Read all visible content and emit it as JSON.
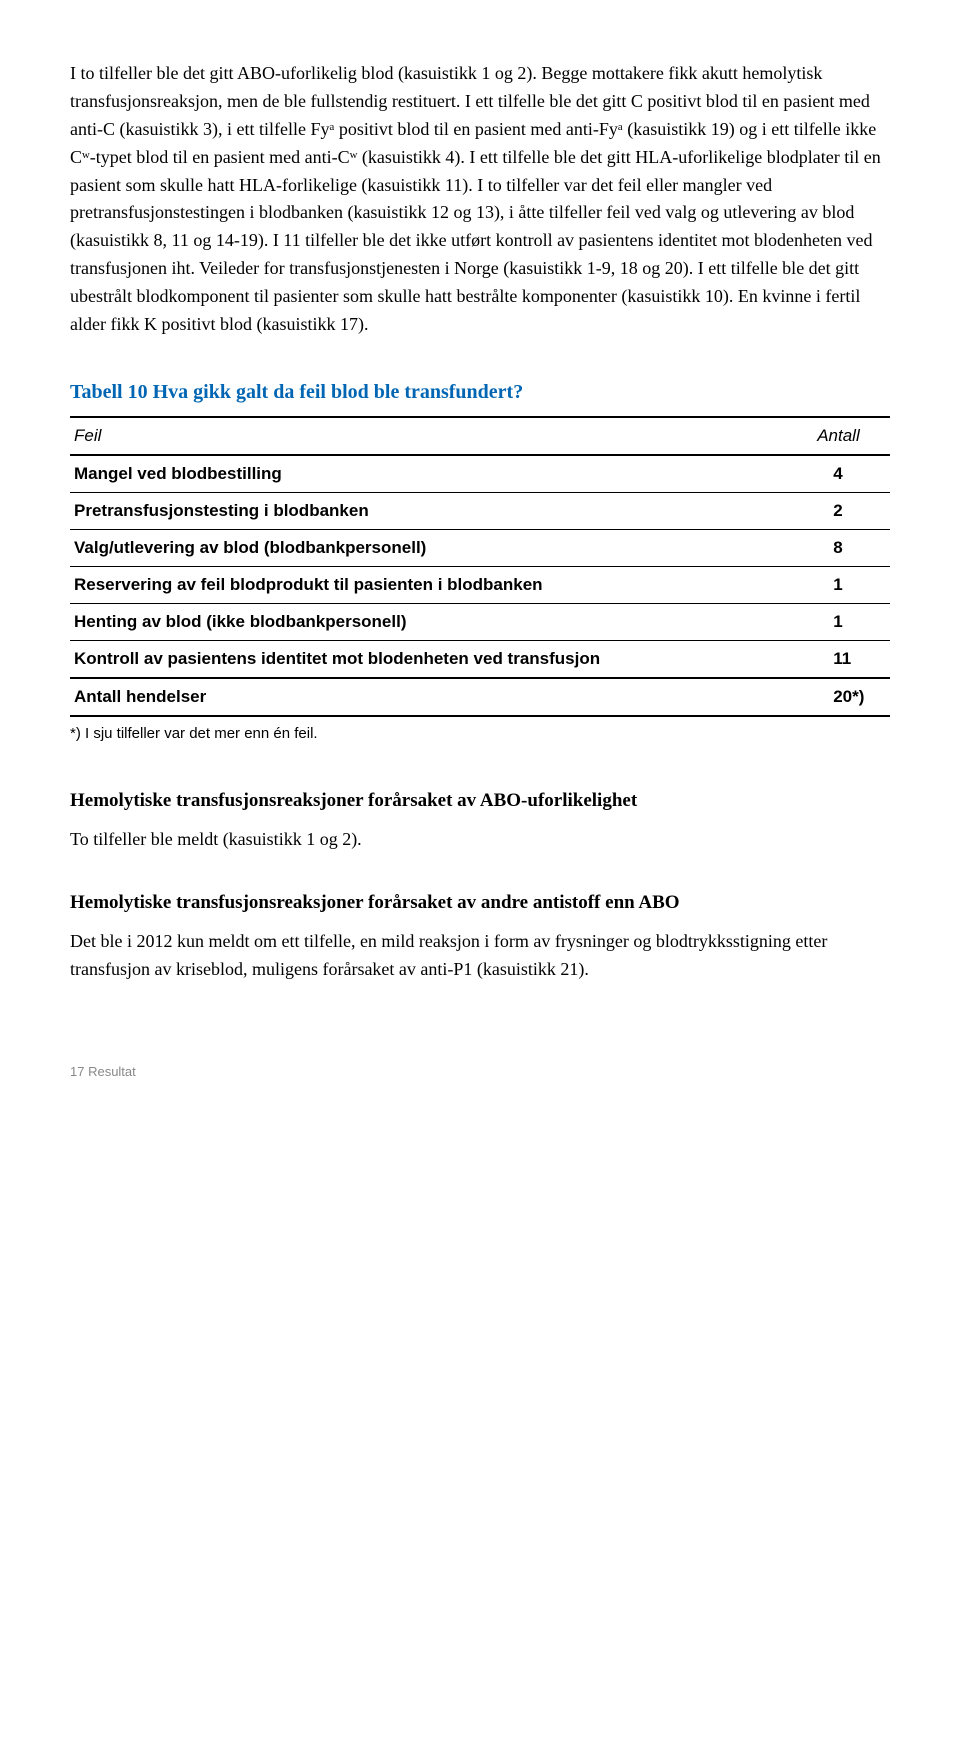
{
  "body_paragraph": "I to tilfeller ble det gitt ABO-uforlikelig blod (kasuistikk 1 og 2). Begge mottakere fikk akutt hemolytisk transfusjonsreaksjon, men de ble fullstendig restituert. I ett tilfelle ble det gitt C positivt blod til en pasient med anti-C (kasuistikk 3), i ett tilfelle Fyᵃ positivt blod til en pasient med anti-Fyᵃ (kasuistikk 19) og i ett tilfelle ikke Cʷ-typet blod til en pasient med anti-Cʷ (kasuistikk 4). I ett tilfelle ble det gitt HLA-uforlikelige blodplater til en pasient som skulle hatt HLA-forlikelige (kasuistikk 11). I to tilfeller var det feil eller mangler ved pretransfusjonstestingen i blodbanken (kasuistikk 12 og 13), i åtte tilfeller feil ved valg og utlevering av blod (kasuistikk 8, 11 og 14-19). I 11 tilfeller ble det ikke utført kontroll av pasientens identitet mot blodenheten ved transfusjonen iht. Veileder for transfusjonstjenesten i Norge (kasuistikk 1-9, 18 og 20). I ett tilfelle ble det gitt ubestrålt blodkomponent til pasienter som skulle hatt bestrålte komponenter (kasuistikk 10). En kvinne i fertil alder fikk K positivt blod (kasuistikk 17).",
  "table": {
    "title": "Tabell 10 Hva gikk galt da feil blod ble transfundert?",
    "header_feil": "Feil",
    "header_antall": "Antall",
    "rows": [
      {
        "label": "Mangel ved blodbestilling",
        "value": "4"
      },
      {
        "label": "Pretransfusjonstesting i blodbanken",
        "value": "2"
      },
      {
        "label": "Valg/utlevering av blod (blodbankpersonell)",
        "value": "8"
      },
      {
        "label": "Reservering av feil blodprodukt til pasienten i blodbanken",
        "value": "1"
      },
      {
        "label": "Henting av blod (ikke blodbankpersonell)",
        "value": "1"
      },
      {
        "label": "Kontroll av pasientens identitet mot blodenheten ved transfusjon",
        "value": "11"
      }
    ],
    "total_label": "Antall hendelser",
    "total_value": "20*)",
    "footnote": "*) I sju tilfeller var det mer enn én feil."
  },
  "section1": {
    "heading": "Hemolytiske transfusjonsreaksjoner forårsaket av ABO-uforlikelighet",
    "text": "To tilfeller ble meldt (kasuistikk 1 og 2)."
  },
  "section2": {
    "heading": "Hemolytiske transfusjonsreaksjoner forårsaket av andre antistoff enn ABO",
    "text": "Det ble i 2012 kun meldt om ett tilfelle, en mild reaksjon i form av frysninger og blodtrykksstigning etter transfusjon av kriseblod, muligens forårsaket av anti-P1 (kasuistikk 21)."
  },
  "footer": "17 Resultat",
  "colors": {
    "title_blue": "#0066b3",
    "text_black": "#000000",
    "footer_gray": "#888888",
    "bg": "#ffffff"
  }
}
